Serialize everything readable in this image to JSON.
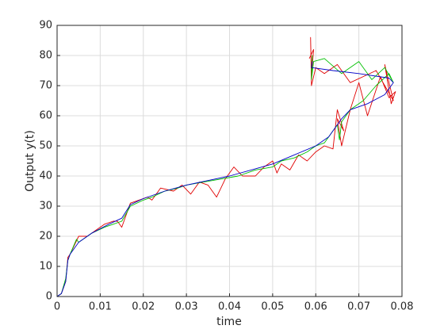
{
  "chart_data": {
    "type": "line",
    "xlabel": "time",
    "ylabel": "Output y(t)",
    "xlim": [
      0,
      0.08
    ],
    "xticks": [
      0,
      0.01,
      0.02,
      0.03,
      0.04,
      0.05,
      0.06,
      0.07,
      0.08
    ],
    "ylim": [
      0,
      90
    ],
    "yticks": [
      0,
      10,
      20,
      30,
      40,
      50,
      60,
      70,
      80,
      90
    ],
    "grid": true,
    "series": [
      {
        "color": "#e00000",
        "x": [
          0,
          0.001,
          0.002,
          0.0025,
          0.003,
          0.004,
          0.005,
          0.007,
          0.009,
          0.011,
          0.013,
          0.014,
          0.015,
          0.017,
          0.019,
          0.021,
          0.022,
          0.024,
          0.027,
          0.029,
          0.031,
          0.033,
          0.035,
          0.037,
          0.039,
          0.041,
          0.043,
          0.046,
          0.048,
          0.05,
          0.051,
          0.052,
          0.054,
          0.056,
          0.058,
          0.06,
          0.062,
          0.064,
          0.065,
          0.0665,
          0.065,
          0.066,
          0.068,
          0.07,
          0.072,
          0.075,
          0.077,
          0.0785,
          0.0775,
          0.076,
          0.078,
          0.074,
          0.071,
          0.068,
          0.065,
          0.062,
          0.06,
          0.059,
          0.0588,
          0.059,
          0.0595,
          0.0585
        ],
        "values": [
          0,
          1,
          5,
          13,
          14,
          17,
          20,
          20,
          22,
          24,
          25,
          25,
          23,
          31,
          32,
          33,
          32,
          36,
          35,
          37,
          34,
          38,
          37,
          33,
          39,
          43,
          40,
          40,
          43,
          45,
          41,
          44,
          42,
          47,
          45,
          48,
          50,
          49,
          62,
          55,
          59,
          50,
          62,
          71,
          60,
          73,
          66,
          68,
          64,
          77,
          65,
          75,
          73,
          71,
          77,
          74,
          76,
          70,
          86,
          73,
          82,
          79
        ]
      },
      {
        "color": "#00c000",
        "x": [
          0,
          0.001,
          0.002,
          0.0025,
          0.003,
          0.0045,
          0.005,
          0.008,
          0.011,
          0.013,
          0.015,
          0.017,
          0.02,
          0.022,
          0.025,
          0.028,
          0.03,
          0.034,
          0.038,
          0.042,
          0.046,
          0.05,
          0.052,
          0.055,
          0.058,
          0.06,
          0.062,
          0.064,
          0.065,
          0.0655,
          0.066,
          0.068,
          0.071,
          0.074,
          0.077,
          0.078,
          0.076,
          0.073,
          0.07,
          0.066,
          0.062,
          0.0595,
          0.059,
          0.0592,
          0.059
        ],
        "values": [
          0,
          1,
          6,
          12,
          14,
          19,
          18,
          21,
          23,
          24,
          25,
          30,
          32,
          33,
          35,
          36,
          37,
          38,
          39,
          40,
          42,
          43,
          45,
          46,
          48,
          50,
          51,
          55,
          57,
          52,
          58,
          62,
          65,
          70,
          74,
          71,
          76,
          72,
          78,
          74,
          79,
          78,
          72,
          80,
          75
        ]
      },
      {
        "color": "#0000c8",
        "x": [
          0,
          0.001,
          0.002,
          0.0025,
          0.003,
          0.005,
          0.008,
          0.012,
          0.015,
          0.017,
          0.02,
          0.025,
          0.03,
          0.035,
          0.04,
          0.045,
          0.05,
          0.055,
          0.06,
          0.063,
          0.065,
          0.066,
          0.068,
          0.072,
          0.076,
          0.078,
          0.077,
          0.07,
          0.064,
          0.059,
          0.0592
        ],
        "values": [
          0,
          1,
          5,
          12,
          14,
          18,
          21,
          24,
          26,
          30.5,
          32.5,
          35,
          37,
          38.5,
          40,
          42,
          44,
          47,
          50,
          53,
          57,
          59,
          62,
          64,
          67,
          71,
          72.5,
          74,
          75,
          76,
          78
        ]
      }
    ]
  }
}
